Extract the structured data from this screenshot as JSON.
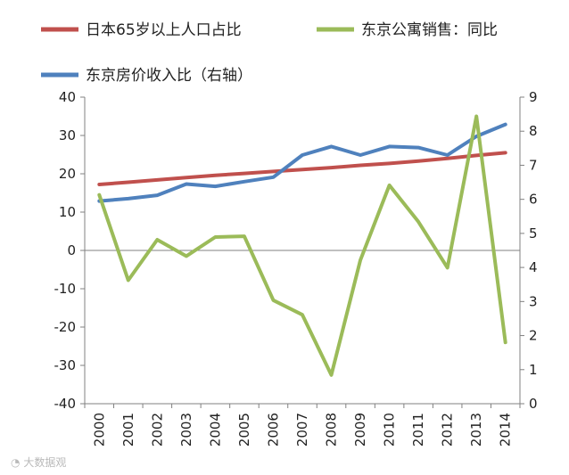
{
  "chart_data": {
    "type": "line",
    "categories": [
      "2000",
      "2001",
      "2002",
      "2003",
      "2004",
      "2005",
      "2006",
      "2007",
      "2008",
      "2009",
      "2010",
      "2011",
      "2012",
      "2013",
      "2014"
    ],
    "series": [
      {
        "name": "日本65岁以上人口占比",
        "axis": "left",
        "color": "#c0504d",
        "values": [
          17.2,
          17.8,
          18.4,
          19.0,
          19.6,
          20.1,
          20.6,
          21.1,
          21.6,
          22.2,
          22.7,
          23.3,
          24.0,
          24.8,
          25.5
        ]
      },
      {
        "name": "东京公寓销售：同比",
        "axis": "left",
        "color": "#9bbb59",
        "values": [
          14.5,
          -7.8,
          2.8,
          -1.5,
          3.5,
          3.7,
          -13.0,
          -16.8,
          -32.5,
          -2.5,
          17.0,
          7.5,
          -4.5,
          35.0,
          -24.0
        ]
      },
      {
        "name": "东京房价收入比（右轴）",
        "axis": "right",
        "color": "#4f81bd",
        "values": [
          5.95,
          6.02,
          6.12,
          6.45,
          6.38,
          6.52,
          6.65,
          7.3,
          7.55,
          7.3,
          7.55,
          7.52,
          7.3,
          7.85,
          8.2
        ]
      }
    ],
    "ylim_left": [
      -40,
      40
    ],
    "yticks_left": [
      -40,
      -30,
      -20,
      -10,
      0,
      10,
      20,
      30,
      40
    ],
    "ylim_right": [
      0,
      9
    ],
    "yticks_right": [
      0,
      1,
      2,
      3,
      4,
      5,
      6,
      7,
      8,
      9
    ],
    "legend": [
      {
        "label": "日本65岁以上人口占比",
        "color": "#c0504d"
      },
      {
        "label": "东京公寓销售：同比",
        "color": "#9bbb59"
      },
      {
        "label": "东京房价收入比（右轴）",
        "color": "#4f81bd"
      }
    ],
    "grid": false,
    "legend_position": "top"
  },
  "watermark": "大数据观"
}
